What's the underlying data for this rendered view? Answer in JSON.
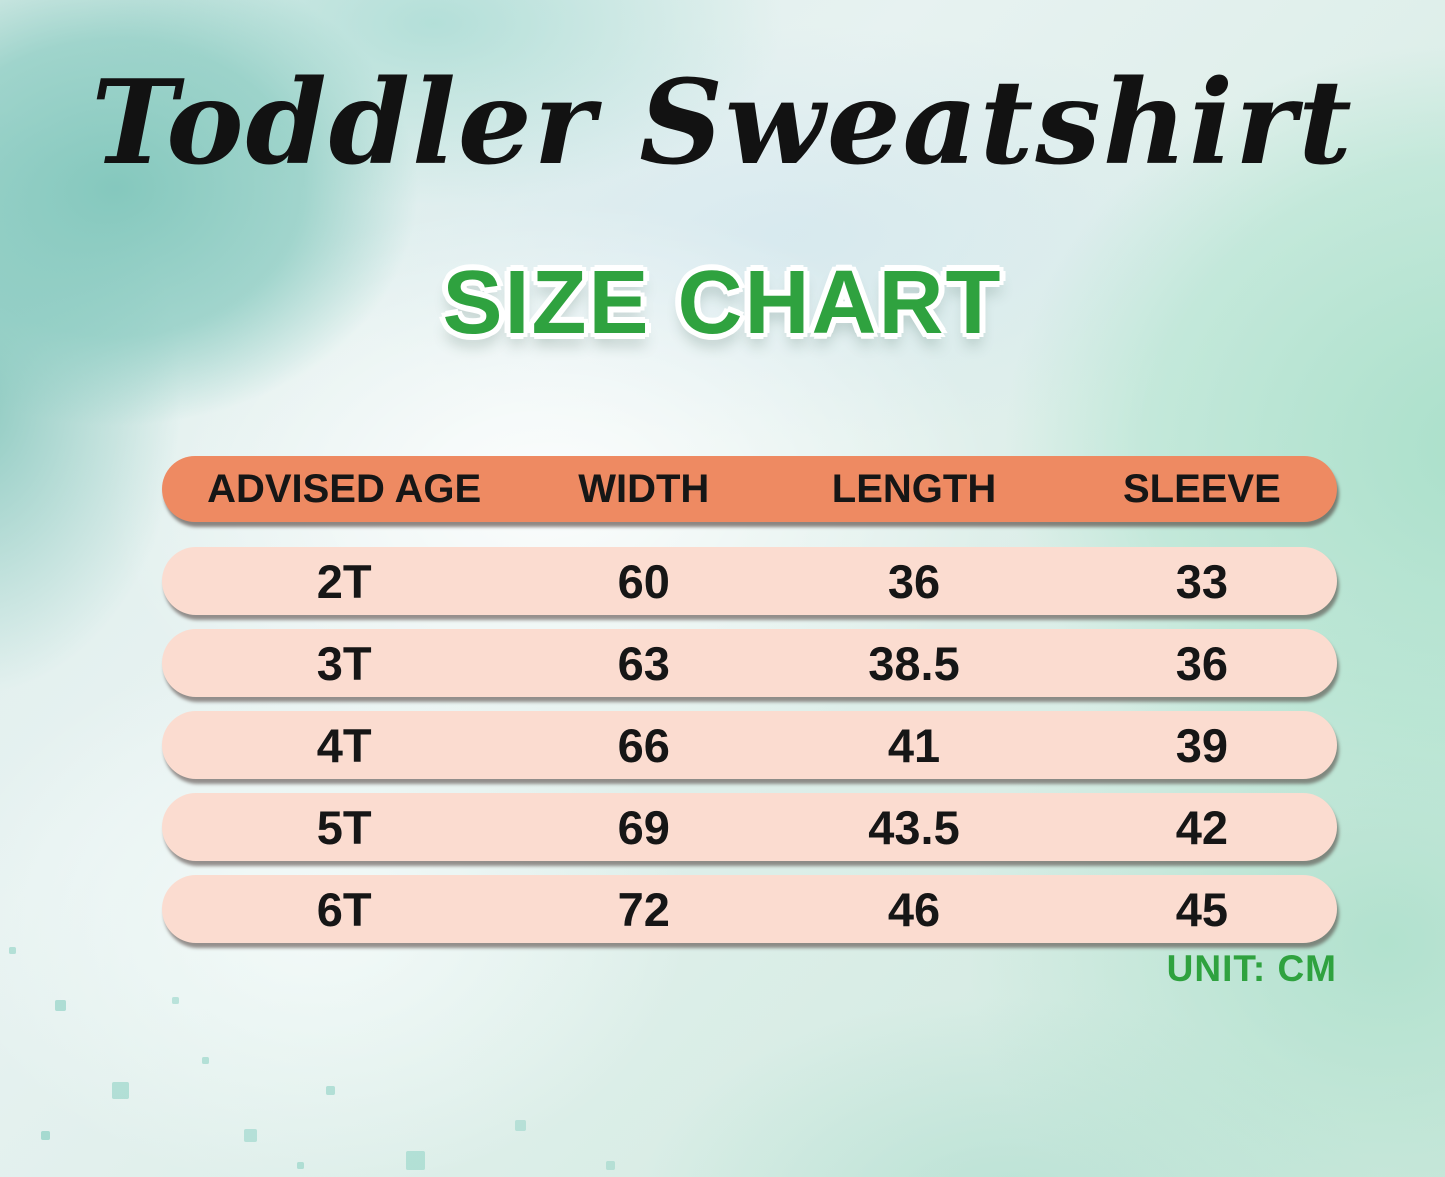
{
  "title": "Toddler Sweatshirt",
  "subtitle": "SIZE CHART",
  "unit_label": "UNIT: CM",
  "colors": {
    "header_row_bg": "#ee8a62",
    "data_row_bg": "#fbdcd0",
    "accent_green": "#2fa23f",
    "text": "#161616",
    "background_teal": "#a5d8d0",
    "background_mint": "#aadfc9"
  },
  "chart_data": {
    "type": "table",
    "title": "Toddler Sweatshirt Size Chart",
    "unit": "CM",
    "columns": [
      "ADVISED AGE",
      "WIDTH",
      "LENGTH",
      "SLEEVE"
    ],
    "rows": [
      [
        "2T",
        "60",
        "36",
        "33"
      ],
      [
        "3T",
        "63",
        "38.5",
        "36"
      ],
      [
        "4T",
        "66",
        "41",
        "39"
      ],
      [
        "5T",
        "69",
        "43.5",
        "42"
      ],
      [
        "6T",
        "72",
        "46",
        "45"
      ]
    ]
  }
}
